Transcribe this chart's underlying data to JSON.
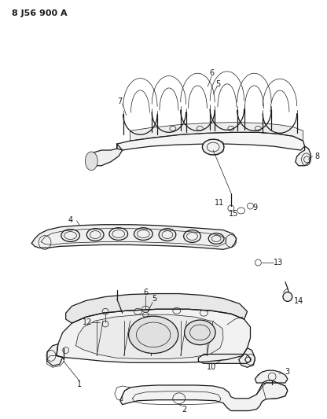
{
  "title": "8 J56 900 A",
  "background_color": "#ffffff",
  "line_color": "#1a1a1a",
  "text_color": "#1a1a1a",
  "figsize": [
    4.16,
    5.33
  ],
  "dpi": 100,
  "lw_main": 0.9,
  "lw_thin": 0.5,
  "lw_thick": 1.1
}
